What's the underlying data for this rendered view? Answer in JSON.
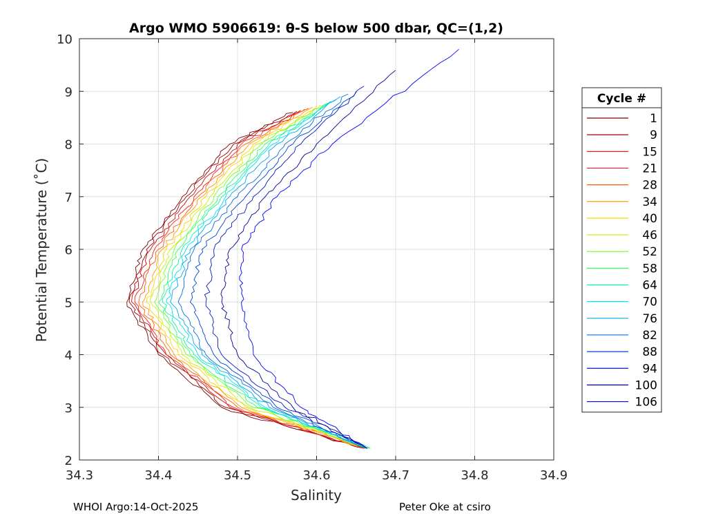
{
  "chart_data": {
    "type": "line",
    "title": "Argo WMO 5906619: θ-S below 500 dbar,  QC=(1,2)",
    "xlabel": "Salinity",
    "ylabel": "Potential Temperature (˚C)",
    "xlim": [
      34.3,
      34.9
    ],
    "ylim": [
      2,
      10
    ],
    "xticks": [
      34.3,
      34.4,
      34.5,
      34.6,
      34.7,
      34.8,
      34.9
    ],
    "xtick_labels": [
      "34.3",
      "34.4",
      "34.5",
      "34.6",
      "34.7",
      "34.8",
      "34.9"
    ],
    "yticks": [
      2,
      3,
      4,
      5,
      6,
      7,
      8,
      9,
      10
    ],
    "ytick_labels": [
      "2",
      "3",
      "4",
      "5",
      "6",
      "7",
      "8",
      "9",
      "10"
    ],
    "grid": true,
    "legend_title": "Cycle #",
    "legend_position": "right-outside",
    "series": [
      {
        "name": "1",
        "color": "#7a0000",
        "values": [
          [
            34.36,
            5.0
          ],
          [
            34.38,
            6.0
          ],
          [
            34.43,
            7.0
          ],
          [
            34.49,
            8.0
          ],
          [
            34.57,
            8.6
          ],
          [
            34.4,
            4.0
          ],
          [
            34.48,
            3.0
          ],
          [
            34.66,
            2.22
          ]
        ]
      },
      {
        "name": "9",
        "color": "#9e0000",
        "values": [
          [
            34.363,
            5.0
          ],
          [
            34.385,
            6.0
          ],
          [
            34.435,
            7.0
          ],
          [
            34.495,
            8.0
          ],
          [
            34.575,
            8.62
          ],
          [
            34.405,
            4.0
          ],
          [
            34.485,
            3.0
          ],
          [
            34.66,
            2.22
          ]
        ]
      },
      {
        "name": "15",
        "color": "#cc0a0a",
        "values": [
          [
            34.366,
            5.0
          ],
          [
            34.39,
            6.0
          ],
          [
            34.44,
            7.0
          ],
          [
            34.5,
            8.0
          ],
          [
            34.58,
            8.64
          ],
          [
            34.41,
            4.0
          ],
          [
            34.49,
            3.0
          ],
          [
            34.66,
            2.22
          ]
        ]
      },
      {
        "name": "21",
        "color": "#f02020",
        "values": [
          [
            34.37,
            5.0
          ],
          [
            34.395,
            6.0
          ],
          [
            34.445,
            7.0
          ],
          [
            34.505,
            8.0
          ],
          [
            34.585,
            8.66
          ],
          [
            34.41,
            4.0
          ],
          [
            34.495,
            3.0
          ],
          [
            34.66,
            2.22
          ]
        ]
      },
      {
        "name": "28",
        "color": "#ff5a00",
        "values": [
          [
            34.375,
            5.0
          ],
          [
            34.4,
            6.0
          ],
          [
            34.45,
            7.0
          ],
          [
            34.51,
            8.0
          ],
          [
            34.59,
            8.68
          ],
          [
            34.415,
            4.0
          ],
          [
            34.5,
            3.0
          ],
          [
            34.662,
            2.22
          ]
        ]
      },
      {
        "name": "34",
        "color": "#ff9a00",
        "values": [
          [
            34.38,
            5.0
          ],
          [
            34.405,
            6.0
          ],
          [
            34.455,
            7.0
          ],
          [
            34.515,
            8.0
          ],
          [
            34.595,
            8.7
          ],
          [
            34.42,
            4.0
          ],
          [
            34.505,
            3.0
          ],
          [
            34.662,
            2.22
          ]
        ]
      },
      {
        "name": "40",
        "color": "#ffd000",
        "values": [
          [
            34.385,
            5.0
          ],
          [
            34.41,
            6.0
          ],
          [
            34.46,
            7.0
          ],
          [
            34.52,
            8.0
          ],
          [
            34.6,
            8.72
          ],
          [
            34.425,
            4.0
          ],
          [
            34.51,
            3.0
          ],
          [
            34.664,
            2.22
          ]
        ]
      },
      {
        "name": "46",
        "color": "#c8f000",
        "values": [
          [
            34.39,
            5.0
          ],
          [
            34.415,
            6.0
          ],
          [
            34.465,
            7.0
          ],
          [
            34.525,
            8.0
          ],
          [
            34.605,
            8.74
          ],
          [
            34.43,
            4.0
          ],
          [
            34.515,
            3.0
          ],
          [
            34.664,
            2.22
          ]
        ]
      },
      {
        "name": "52",
        "color": "#70ff20",
        "values": [
          [
            34.395,
            5.0
          ],
          [
            34.42,
            6.0
          ],
          [
            34.47,
            7.0
          ],
          [
            34.53,
            8.0
          ],
          [
            34.61,
            8.76
          ],
          [
            34.435,
            4.0
          ],
          [
            34.52,
            3.0
          ],
          [
            34.666,
            2.22
          ]
        ]
      },
      {
        "name": "58",
        "color": "#30ff60",
        "values": [
          [
            34.4,
            5.0
          ],
          [
            34.425,
            6.0
          ],
          [
            34.475,
            7.0
          ],
          [
            34.535,
            8.0
          ],
          [
            34.615,
            8.78
          ],
          [
            34.44,
            4.0
          ],
          [
            34.525,
            3.0
          ],
          [
            34.668,
            2.22
          ]
        ]
      },
      {
        "name": "64",
        "color": "#10f0b0",
        "values": [
          [
            34.405,
            5.0
          ],
          [
            34.43,
            6.0
          ],
          [
            34.48,
            7.0
          ],
          [
            34.54,
            8.0
          ],
          [
            34.62,
            8.8
          ],
          [
            34.445,
            4.0
          ],
          [
            34.53,
            3.0
          ],
          [
            34.666,
            2.22
          ]
        ]
      },
      {
        "name": "70",
        "color": "#00e0f0",
        "values": [
          [
            34.41,
            5.0
          ],
          [
            34.435,
            6.0
          ],
          [
            34.485,
            7.0
          ],
          [
            34.545,
            8.0
          ],
          [
            34.625,
            8.85
          ],
          [
            34.45,
            4.0
          ],
          [
            34.535,
            3.0
          ],
          [
            34.664,
            2.22
          ]
        ]
      },
      {
        "name": "76",
        "color": "#00a8f0",
        "values": [
          [
            34.415,
            5.0
          ],
          [
            34.44,
            6.0
          ],
          [
            34.49,
            7.0
          ],
          [
            34.55,
            8.0
          ],
          [
            34.63,
            8.9
          ],
          [
            34.455,
            4.0
          ],
          [
            34.54,
            3.0
          ],
          [
            34.664,
            2.22
          ]
        ]
      },
      {
        "name": "82",
        "color": "#0070e0",
        "values": [
          [
            34.425,
            5.0
          ],
          [
            34.445,
            6.0
          ],
          [
            34.5,
            7.0
          ],
          [
            34.56,
            8.0
          ],
          [
            34.64,
            8.95
          ],
          [
            34.46,
            4.0
          ],
          [
            34.545,
            3.0
          ],
          [
            34.664,
            2.22
          ]
        ]
      },
      {
        "name": "88",
        "color": "#0040d8",
        "values": [
          [
            34.44,
            5.0
          ],
          [
            34.455,
            6.0
          ],
          [
            34.51,
            7.0
          ],
          [
            34.57,
            8.0
          ],
          [
            34.65,
            9.0
          ],
          [
            34.47,
            4.0
          ],
          [
            34.55,
            3.0
          ],
          [
            34.664,
            2.22
          ]
        ]
      },
      {
        "name": "94",
        "color": "#0018c0",
        "values": [
          [
            34.46,
            5.0
          ],
          [
            34.47,
            6.0
          ],
          [
            34.52,
            7.0
          ],
          [
            34.58,
            8.0
          ],
          [
            34.66,
            9.1
          ],
          [
            34.48,
            4.0
          ],
          [
            34.56,
            3.0
          ],
          [
            34.664,
            2.22
          ]
        ]
      },
      {
        "name": "100",
        "color": "#000090",
        "values": [
          [
            34.48,
            5.0
          ],
          [
            34.49,
            6.0
          ],
          [
            34.535,
            7.0
          ],
          [
            34.6,
            8.0
          ],
          [
            34.7,
            9.4
          ],
          [
            34.5,
            4.0
          ],
          [
            34.57,
            3.0
          ],
          [
            34.664,
            2.22
          ]
        ]
      },
      {
        "name": "106",
        "color": "#0000ff",
        "values": [
          [
            34.505,
            5.0
          ],
          [
            34.505,
            6.0
          ],
          [
            34.55,
            7.0
          ],
          [
            34.62,
            8.0
          ],
          [
            34.78,
            9.8
          ],
          [
            34.52,
            4.0
          ],
          [
            34.58,
            3.0
          ],
          [
            34.664,
            2.22
          ]
        ]
      }
    ]
  },
  "footer": {
    "left": "WHOI Argo:14-Oct-2025",
    "right": "Peter Oke at csiro"
  }
}
